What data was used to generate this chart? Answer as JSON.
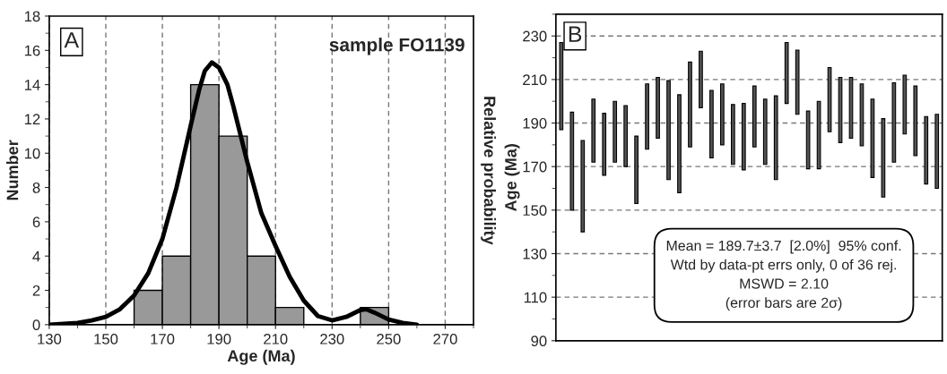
{
  "chart_data": [
    {
      "type": "histogram",
      "xlabel": "Age (Ma)",
      "ylabel": "Number",
      "y2label": "Relative probability",
      "bins": [
        160,
        170,
        180,
        190,
        200,
        210,
        220,
        230,
        240,
        250
      ],
      "values": [
        2,
        4,
        14,
        11,
        4,
        1,
        0,
        0,
        1
      ],
      "color": "#999999",
      "series": [
        {
          "type": "line",
          "color": "#000000",
          "x": [
            130,
            140,
            145,
            150,
            155,
            160,
            165,
            170,
            175,
            180,
            183,
            185,
            187.5,
            190,
            193,
            195,
            200,
            205,
            210,
            215,
            220,
            225,
            230,
            235,
            240,
            242,
            245,
            250,
            255,
            260
          ],
          "values": [
            0,
            0.1,
            0.25,
            0.45,
            0.9,
            1.7,
            3.0,
            5.0,
            8.0,
            11.6,
            13.7,
            14.8,
            15.3,
            15.0,
            14.0,
            12.8,
            9.5,
            6.5,
            4.6,
            2.8,
            1.4,
            0.5,
            0.25,
            0.45,
            0.85,
            0.9,
            0.7,
            0.3,
            0.1,
            0
          ]
        }
      ],
      "xlim": [
        130,
        280
      ],
      "xticks": [
        130,
        150,
        170,
        190,
        210,
        230,
        250,
        270
      ],
      "ylim": [
        0,
        18
      ],
      "yticks": [
        0,
        2,
        4,
        6,
        8,
        10,
        12,
        14,
        16,
        18
      ],
      "grid": "x",
      "annotations": [
        "A",
        "sample FO1139"
      ]
    },
    {
      "type": "bar",
      "ylabel": "Age (Ma)",
      "color": "#555555",
      "categories": [
        null,
        null,
        null,
        null,
        null,
        null,
        null,
        null,
        null,
        null,
        null,
        null,
        null,
        null,
        null,
        null,
        null,
        null,
        null,
        null,
        null,
        null,
        null,
        null,
        null,
        null,
        null,
        null,
        null,
        null,
        null,
        null,
        null,
        null,
        null,
        null
      ],
      "base": [
        187,
        150,
        140,
        172,
        166,
        172,
        170,
        153,
        178,
        183,
        164,
        158,
        179,
        197,
        174,
        180,
        171,
        168.5,
        179,
        171,
        164,
        199,
        194,
        169,
        169,
        186,
        181,
        183,
        179.5,
        165,
        156,
        172,
        185,
        175,
        162,
        160
      ],
      "values": [
        40,
        45,
        42,
        29,
        28.5,
        28,
        28,
        31,
        30,
        28,
        45.5,
        45,
        39,
        26,
        31,
        28,
        27.5,
        30.5,
        28,
        30,
        38.5,
        28,
        29.5,
        26.5,
        31,
        29.5,
        30,
        28,
        28.5,
        36,
        36,
        36.5,
        27,
        32,
        31,
        34
      ],
      "ylim": [
        90,
        240
      ],
      "yticks": [
        90,
        110,
        130,
        150,
        170,
        190,
        210,
        230
      ],
      "grid": "y",
      "annotations": [
        "B",
        "Mean = 189.7±3.7  [2.0%]  95% conf.\nWtd by data-pt errs only, 0 of 36 rej.\nMSWD = 2.10\n(error bars are 2σ)"
      ]
    }
  ]
}
